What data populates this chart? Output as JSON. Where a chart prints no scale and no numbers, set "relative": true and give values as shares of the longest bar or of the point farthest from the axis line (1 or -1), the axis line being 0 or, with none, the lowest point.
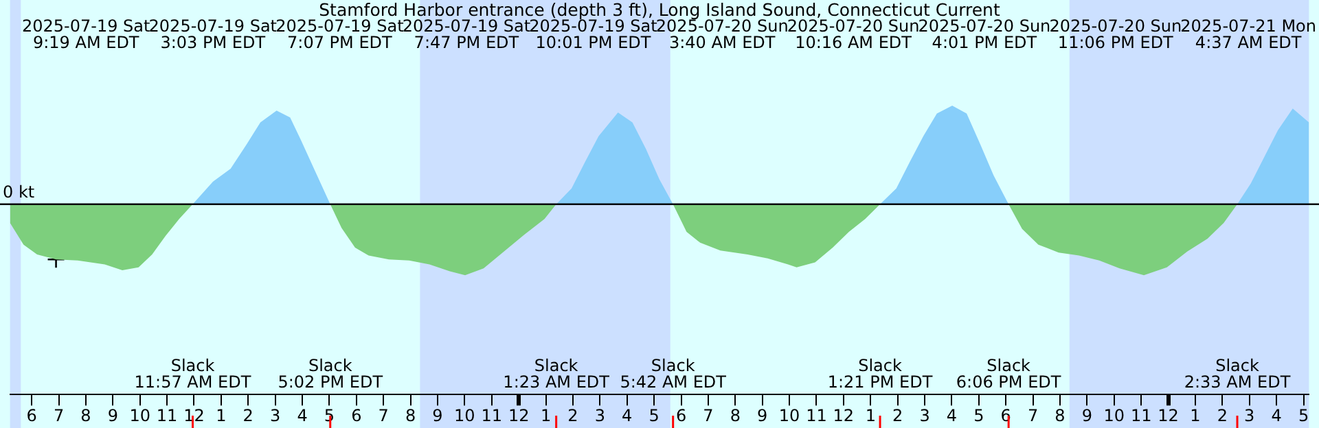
{
  "chart_data": {
    "type": "area",
    "title": "Stamford Harbor entrance (depth 3 ft), Long Island Sound, Connecticut Current",
    "relative": true,
    "legend": false,
    "grid": false,
    "xlim": [
      "2025-07-19T05:12",
      "2025-07-21T05:12"
    ],
    "xticks": [
      {
        "value": "2025-07-19T06:00",
        "label": "6"
      },
      {
        "value": "2025-07-19T07:00",
        "label": "7"
      },
      {
        "value": "2025-07-19T08:00",
        "label": "8"
      },
      {
        "value": "2025-07-19T09:00",
        "label": "9"
      },
      {
        "value": "2025-07-19T10:00",
        "label": "10"
      },
      {
        "value": "2025-07-19T11:00",
        "label": "11"
      },
      {
        "value": "2025-07-19T12:00",
        "label": "12"
      },
      {
        "value": "2025-07-19T13:00",
        "label": "1"
      },
      {
        "value": "2025-07-19T14:00",
        "label": "2"
      },
      {
        "value": "2025-07-19T15:00",
        "label": "3"
      },
      {
        "value": "2025-07-19T16:00",
        "label": "4"
      },
      {
        "value": "2025-07-19T17:00",
        "label": "5"
      },
      {
        "value": "2025-07-19T18:00",
        "label": "6"
      },
      {
        "value": "2025-07-19T19:00",
        "label": "7"
      },
      {
        "value": "2025-07-19T20:00",
        "label": "8"
      },
      {
        "value": "2025-07-19T21:00",
        "label": "9"
      },
      {
        "value": "2025-07-19T22:00",
        "label": "10"
      },
      {
        "value": "2025-07-19T23:00",
        "label": "11"
      },
      {
        "value": "2025-07-20T00:00",
        "label": "12"
      },
      {
        "value": "2025-07-20T01:00",
        "label": "1"
      },
      {
        "value": "2025-07-20T02:00",
        "label": "2"
      },
      {
        "value": "2025-07-20T03:00",
        "label": "3"
      },
      {
        "value": "2025-07-20T04:00",
        "label": "4"
      },
      {
        "value": "2025-07-20T05:00",
        "label": "5"
      },
      {
        "value": "2025-07-20T06:00",
        "label": "6"
      },
      {
        "value": "2025-07-20T07:00",
        "label": "7"
      },
      {
        "value": "2025-07-20T08:00",
        "label": "8"
      },
      {
        "value": "2025-07-20T09:00",
        "label": "9"
      },
      {
        "value": "2025-07-20T10:00",
        "label": "10"
      },
      {
        "value": "2025-07-20T11:00",
        "label": "11"
      },
      {
        "value": "2025-07-20T12:00",
        "label": "12"
      },
      {
        "value": "2025-07-20T13:00",
        "label": "1"
      },
      {
        "value": "2025-07-20T14:00",
        "label": "2"
      },
      {
        "value": "2025-07-20T15:00",
        "label": "3"
      },
      {
        "value": "2025-07-20T16:00",
        "label": "4"
      },
      {
        "value": "2025-07-20T17:00",
        "label": "5"
      },
      {
        "value": "2025-07-20T18:00",
        "label": "6"
      },
      {
        "value": "2025-07-20T19:00",
        "label": "7"
      },
      {
        "value": "2025-07-20T20:00",
        "label": "8"
      },
      {
        "value": "2025-07-20T21:00",
        "label": "9"
      },
      {
        "value": "2025-07-20T22:00",
        "label": "10"
      },
      {
        "value": "2025-07-20T23:00",
        "label": "11"
      },
      {
        "value": "2025-07-21T00:00",
        "label": "12"
      },
      {
        "value": "2025-07-21T01:00",
        "label": "1"
      },
      {
        "value": "2025-07-21T02:00",
        "label": "2"
      },
      {
        "value": "2025-07-21T03:00",
        "label": "3"
      },
      {
        "value": "2025-07-21T04:00",
        "label": "4"
      },
      {
        "value": "2025-07-21T05:00",
        "label": "5"
      }
    ],
    "series": [
      {
        "color": "#7dcf7d",
        "marker": "none",
        "x": [
          "2025-07-19T05:12",
          "2025-07-19T05:42",
          "2025-07-19T06:12",
          "2025-07-19T06:54",
          "2025-07-19T07:42",
          "2025-07-19T08:42",
          "2025-07-19T09:21",
          "2025-07-19T09:57",
          "2025-07-19T10:27",
          "2025-07-19T10:57",
          "2025-07-19T11:27",
          "2025-07-19T11:57",
          "2025-07-19T14:30",
          "2025-07-19T17:02",
          "2025-07-19T17:27",
          "2025-07-19T17:57",
          "2025-07-19T18:27",
          "2025-07-19T19:12",
          "2025-07-19T19:57",
          "2025-07-19T20:42",
          "2025-07-19T21:27",
          "2025-07-19T22:01",
          "2025-07-19T22:42",
          "2025-07-19T23:27",
          "2025-07-20T00:12",
          "2025-07-20T00:57",
          "2025-07-20T01:23",
          "2025-07-20T03:30",
          "2025-07-20T05:42",
          "2025-07-20T06:12",
          "2025-07-20T06:42",
          "2025-07-20T07:27",
          "2025-07-20T08:27",
          "2025-07-20T09:12",
          "2025-07-20T09:57",
          "2025-07-20T10:16",
          "2025-07-20T10:57",
          "2025-07-20T11:36",
          "2025-07-20T12:12",
          "2025-07-20T12:48",
          "2025-07-20T13:21",
          "2025-07-20T16:00",
          "2025-07-20T18:06",
          "2025-07-20T18:36",
          "2025-07-20T19:12",
          "2025-07-20T19:57",
          "2025-07-20T20:42",
          "2025-07-20T21:27",
          "2025-07-20T22:12",
          "2025-07-20T23:06",
          "2025-07-20T23:57",
          "2025-07-21T00:42",
          "2025-07-21T01:27",
          "2025-07-21T02:03",
          "2025-07-21T02:33"
        ],
        "values": [
          -0.19,
          -0.41,
          -0.51,
          -0.56,
          -0.57,
          -0.61,
          -0.67,
          -0.64,
          -0.51,
          -0.32,
          -0.15,
          0,
          null,
          0,
          -0.24,
          -0.44,
          -0.52,
          -0.56,
          -0.57,
          -0.61,
          -0.68,
          -0.72,
          -0.65,
          -0.48,
          -0.31,
          -0.15,
          0,
          null,
          0,
          -0.28,
          -0.39,
          -0.47,
          -0.51,
          -0.55,
          -0.61,
          -0.64,
          -0.59,
          -0.44,
          -0.28,
          -0.15,
          0,
          null,
          0,
          -0.25,
          -0.41,
          -0.49,
          -0.52,
          -0.57,
          -0.65,
          -0.72,
          -0.64,
          -0.48,
          -0.35,
          -0.19,
          0
        ]
      },
      {
        "color": "#87cefa",
        "marker": "none",
        "x": [
          "2025-07-19T11:57",
          "2025-07-19T12:42",
          "2025-07-19T13:21",
          "2025-07-19T13:57",
          "2025-07-19T14:27",
          "2025-07-19T15:03",
          "2025-07-19T15:33",
          "2025-07-19T15:57",
          "2025-07-19T16:27",
          "2025-07-19T17:02",
          "2025-07-19T21:00",
          "2025-07-20T01:23",
          "2025-07-20T01:57",
          "2025-07-20T02:27",
          "2025-07-20T02:57",
          "2025-07-20T03:40",
          "2025-07-20T04:12",
          "2025-07-20T04:42",
          "2025-07-20T05:12",
          "2025-07-20T05:42",
          "2025-07-20T09:00",
          "2025-07-20T13:21",
          "2025-07-20T13:57",
          "2025-07-20T14:27",
          "2025-07-20T14:57",
          "2025-07-20T15:27",
          "2025-07-20T16:01",
          "2025-07-20T16:33",
          "2025-07-20T17:03",
          "2025-07-20T17:33",
          "2025-07-20T18:06",
          "2025-07-20T22:00",
          "2025-07-21T02:33",
          "2025-07-21T03:03",
          "2025-07-21T03:33",
          "2025-07-21T04:03",
          "2025-07-21T04:36",
          "2025-07-21T05:12"
        ],
        "values": [
          0,
          0.23,
          0.36,
          0.61,
          0.83,
          0.95,
          0.88,
          0.65,
          0.35,
          0,
          null,
          0,
          0.16,
          0.43,
          0.69,
          0.93,
          0.83,
          0.56,
          0.25,
          0,
          null,
          0,
          0.16,
          0.43,
          0.69,
          0.92,
          1,
          0.92,
          0.61,
          0.29,
          0,
          null,
          0,
          0.21,
          0.48,
          0.75,
          0.97,
          0.83
        ]
      },
      {
        "type": "scatter",
        "color": "#000000",
        "marker": "cross",
        "x": [
          "2025-07-19T06:54"
        ],
        "values": [
          -0.56
        ]
      }
    ],
    "ref_lines": [
      {
        "axis": "y",
        "value": 0,
        "label": "0 kt",
        "color": "#000000"
      },
      {
        "axis": "x",
        "value": "2025-07-19T11:57",
        "label": "Slack\n11:57 AM EDT",
        "color": "#ff0000"
      },
      {
        "axis": "x",
        "value": "2025-07-19T17:02",
        "label": "Slack\n5:02 PM EDT",
        "color": "#ff0000"
      },
      {
        "axis": "x",
        "value": "2025-07-20T01:23",
        "label": "Slack\n1:23 AM EDT",
        "color": "#ff0000"
      },
      {
        "axis": "x",
        "value": "2025-07-20T05:42",
        "label": "Slack\n5:42 AM EDT",
        "color": "#ff0000"
      },
      {
        "axis": "x",
        "value": "2025-07-20T13:21",
        "label": "Slack\n1:21 PM EDT",
        "color": "#ff0000"
      },
      {
        "axis": "x",
        "value": "2025-07-20T18:06",
        "label": "Slack\n6:06 PM EDT",
        "color": "#ff0000"
      },
      {
        "axis": "x",
        "value": "2025-07-21T02:33",
        "label": "Slack\n2:33 AM EDT",
        "color": "#ff0000"
      }
    ],
    "bands": [
      {
        "axis": "x",
        "from": "2025-07-19T05:12",
        "to": "2025-07-19T05:36",
        "color": "#cce0ff"
      },
      {
        "axis": "x",
        "from": "2025-07-19T20:21",
        "to": "2025-07-20T05:36",
        "color": "#cce0ff"
      },
      {
        "axis": "x",
        "from": "2025-07-20T20:21",
        "to": "2025-07-21T05:12",
        "color": "#cce0ff"
      }
    ],
    "annotations": [
      "2025-07-19 Sat\n9:19 AM EDT",
      "2025-07-19 Sat\n3:03 PM EDT",
      "2025-07-19 Sat\n7:07 PM EDT",
      "2025-07-19 Sat\n7:47 PM EDT",
      "2025-07-19 Sat\n10:01 PM EDT",
      "2025-07-20 Sun\n3:40 AM EDT",
      "2025-07-20 Sun\n10:16 AM EDT",
      "2025-07-20 Sun\n4:01 PM EDT",
      "2025-07-20 Sun\n11:06 PM EDT",
      "2025-07-21 Mon\n4:37 AM EDT"
    ]
  }
}
